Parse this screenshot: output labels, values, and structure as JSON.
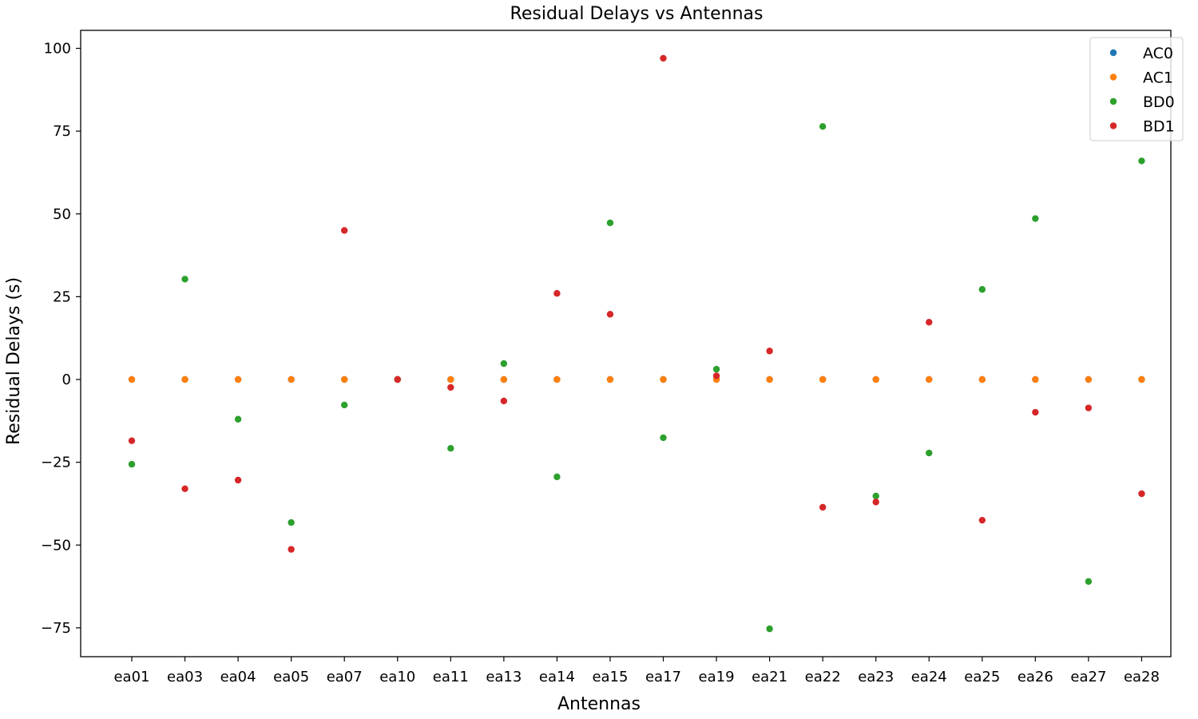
{
  "chart_data": {
    "type": "scatter",
    "title": "Residual Delays vs Antennas",
    "xlabel": "Antennas",
    "ylabel": "Residual Delays (s)",
    "categories": [
      "ea01",
      "ea03",
      "ea04",
      "ea05",
      "ea07",
      "ea10",
      "ea11",
      "ea13",
      "ea14",
      "ea15",
      "ea17",
      "ea19",
      "ea21",
      "ea22",
      "ea23",
      "ea24",
      "ea25",
      "ea26",
      "ea27",
      "ea28"
    ],
    "ylim": [
      -84,
      105
    ],
    "yticks": [
      100,
      75,
      50,
      25,
      0,
      -25,
      -50,
      -75
    ],
    "ytick_labels": [
      "100",
      "75",
      "50",
      "25",
      "0",
      "−25",
      "−50",
      "−75"
    ],
    "grid": false,
    "legend": "top-right",
    "series": [
      {
        "name": "AC0",
        "color": "#1f77b4",
        "values": [
          0,
          0,
          0,
          0,
          0,
          0,
          0,
          0,
          0,
          0,
          0,
          0,
          0,
          0,
          0,
          0,
          0,
          0,
          0,
          0
        ]
      },
      {
        "name": "AC1",
        "color": "#ff7f0e",
        "values": [
          0,
          0,
          0,
          0,
          0,
          0,
          0,
          0,
          0,
          0,
          0,
          0,
          0,
          0,
          0,
          0,
          0,
          0,
          0,
          0
        ]
      },
      {
        "name": "BD0",
        "color": "#2ca02c",
        "values": [
          -25.6,
          30.3,
          -12.0,
          -43.2,
          -7.7,
          0,
          -20.8,
          4.8,
          -29.4,
          47.3,
          -17.6,
          3.1,
          -75.3,
          76.4,
          -35.2,
          -22.2,
          27.2,
          48.6,
          -61.0,
          66.0
        ]
      },
      {
        "name": "BD1",
        "color": "#d62728",
        "values": [
          -18.5,
          -33.0,
          -30.4,
          -51.3,
          45.0,
          0,
          -2.4,
          -6.5,
          26.0,
          19.7,
          97.0,
          1.1,
          8.6,
          -38.6,
          -37.0,
          17.3,
          -42.5,
          -9.9,
          -8.6,
          -34.5
        ]
      }
    ]
  }
}
